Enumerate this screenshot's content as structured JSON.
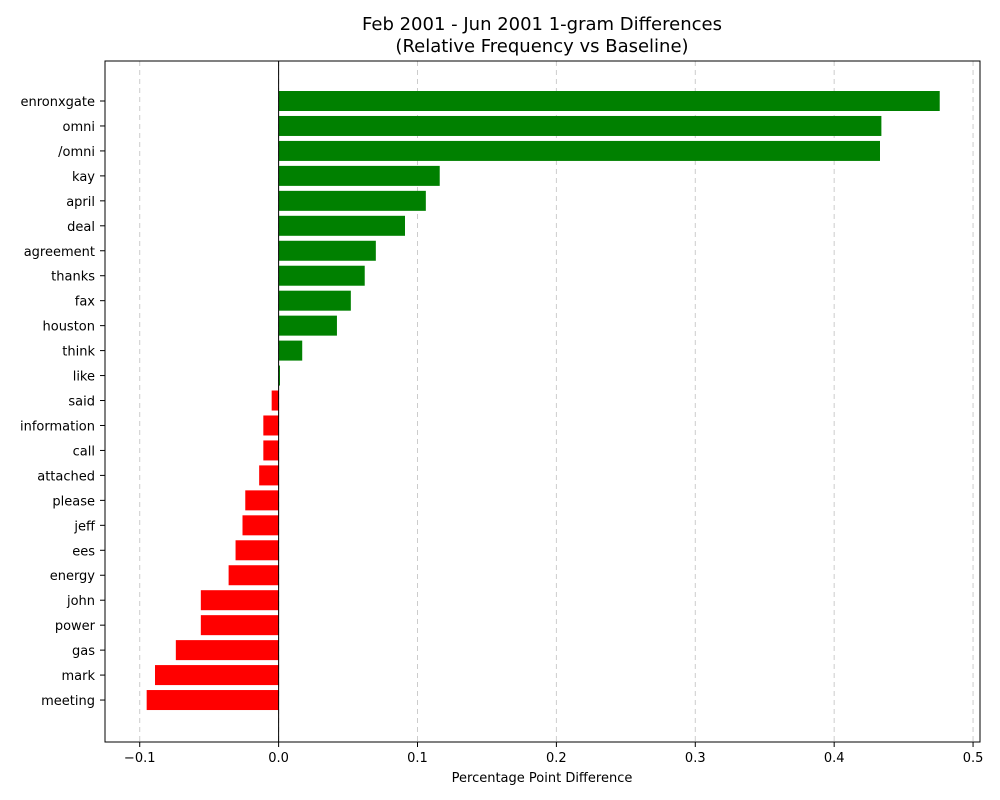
{
  "chart_data": {
    "type": "bar",
    "orientation": "horizontal",
    "title": "Feb 2001 - Jun 2001 1-gram Differences",
    "subtitle": "(Relative Frequency vs Baseline)",
    "xlabel": "Percentage Point Difference",
    "ylabel": "",
    "xlim": [
      -0.125,
      0.505
    ],
    "x_ticks": [
      -0.1,
      0.0,
      0.1,
      0.2,
      0.3,
      0.4,
      0.5
    ],
    "x_tick_labels": [
      "−0.1",
      "0.0",
      "0.1",
      "0.2",
      "0.3",
      "0.4",
      "0.5"
    ],
    "grid": "x-dashed",
    "categories": [
      "enronxgate",
      "omni",
      "/omni",
      "kay",
      "april",
      "deal",
      "agreement",
      "thanks",
      "fax",
      "houston",
      "think",
      "like",
      "said",
      "information",
      "call",
      "attached",
      "please",
      "jeff",
      "ees",
      "energy",
      "john",
      "power",
      "gas",
      "mark",
      "meeting"
    ],
    "values": [
      0.476,
      0.434,
      0.433,
      0.116,
      0.106,
      0.091,
      0.07,
      0.062,
      0.052,
      0.042,
      0.017,
      0.001,
      -0.005,
      -0.011,
      -0.011,
      -0.014,
      -0.024,
      -0.026,
      -0.031,
      -0.036,
      -0.056,
      -0.056,
      -0.074,
      -0.089,
      -0.095
    ],
    "colors": {
      "positive": "#008000",
      "negative": "#ff0000"
    }
  }
}
